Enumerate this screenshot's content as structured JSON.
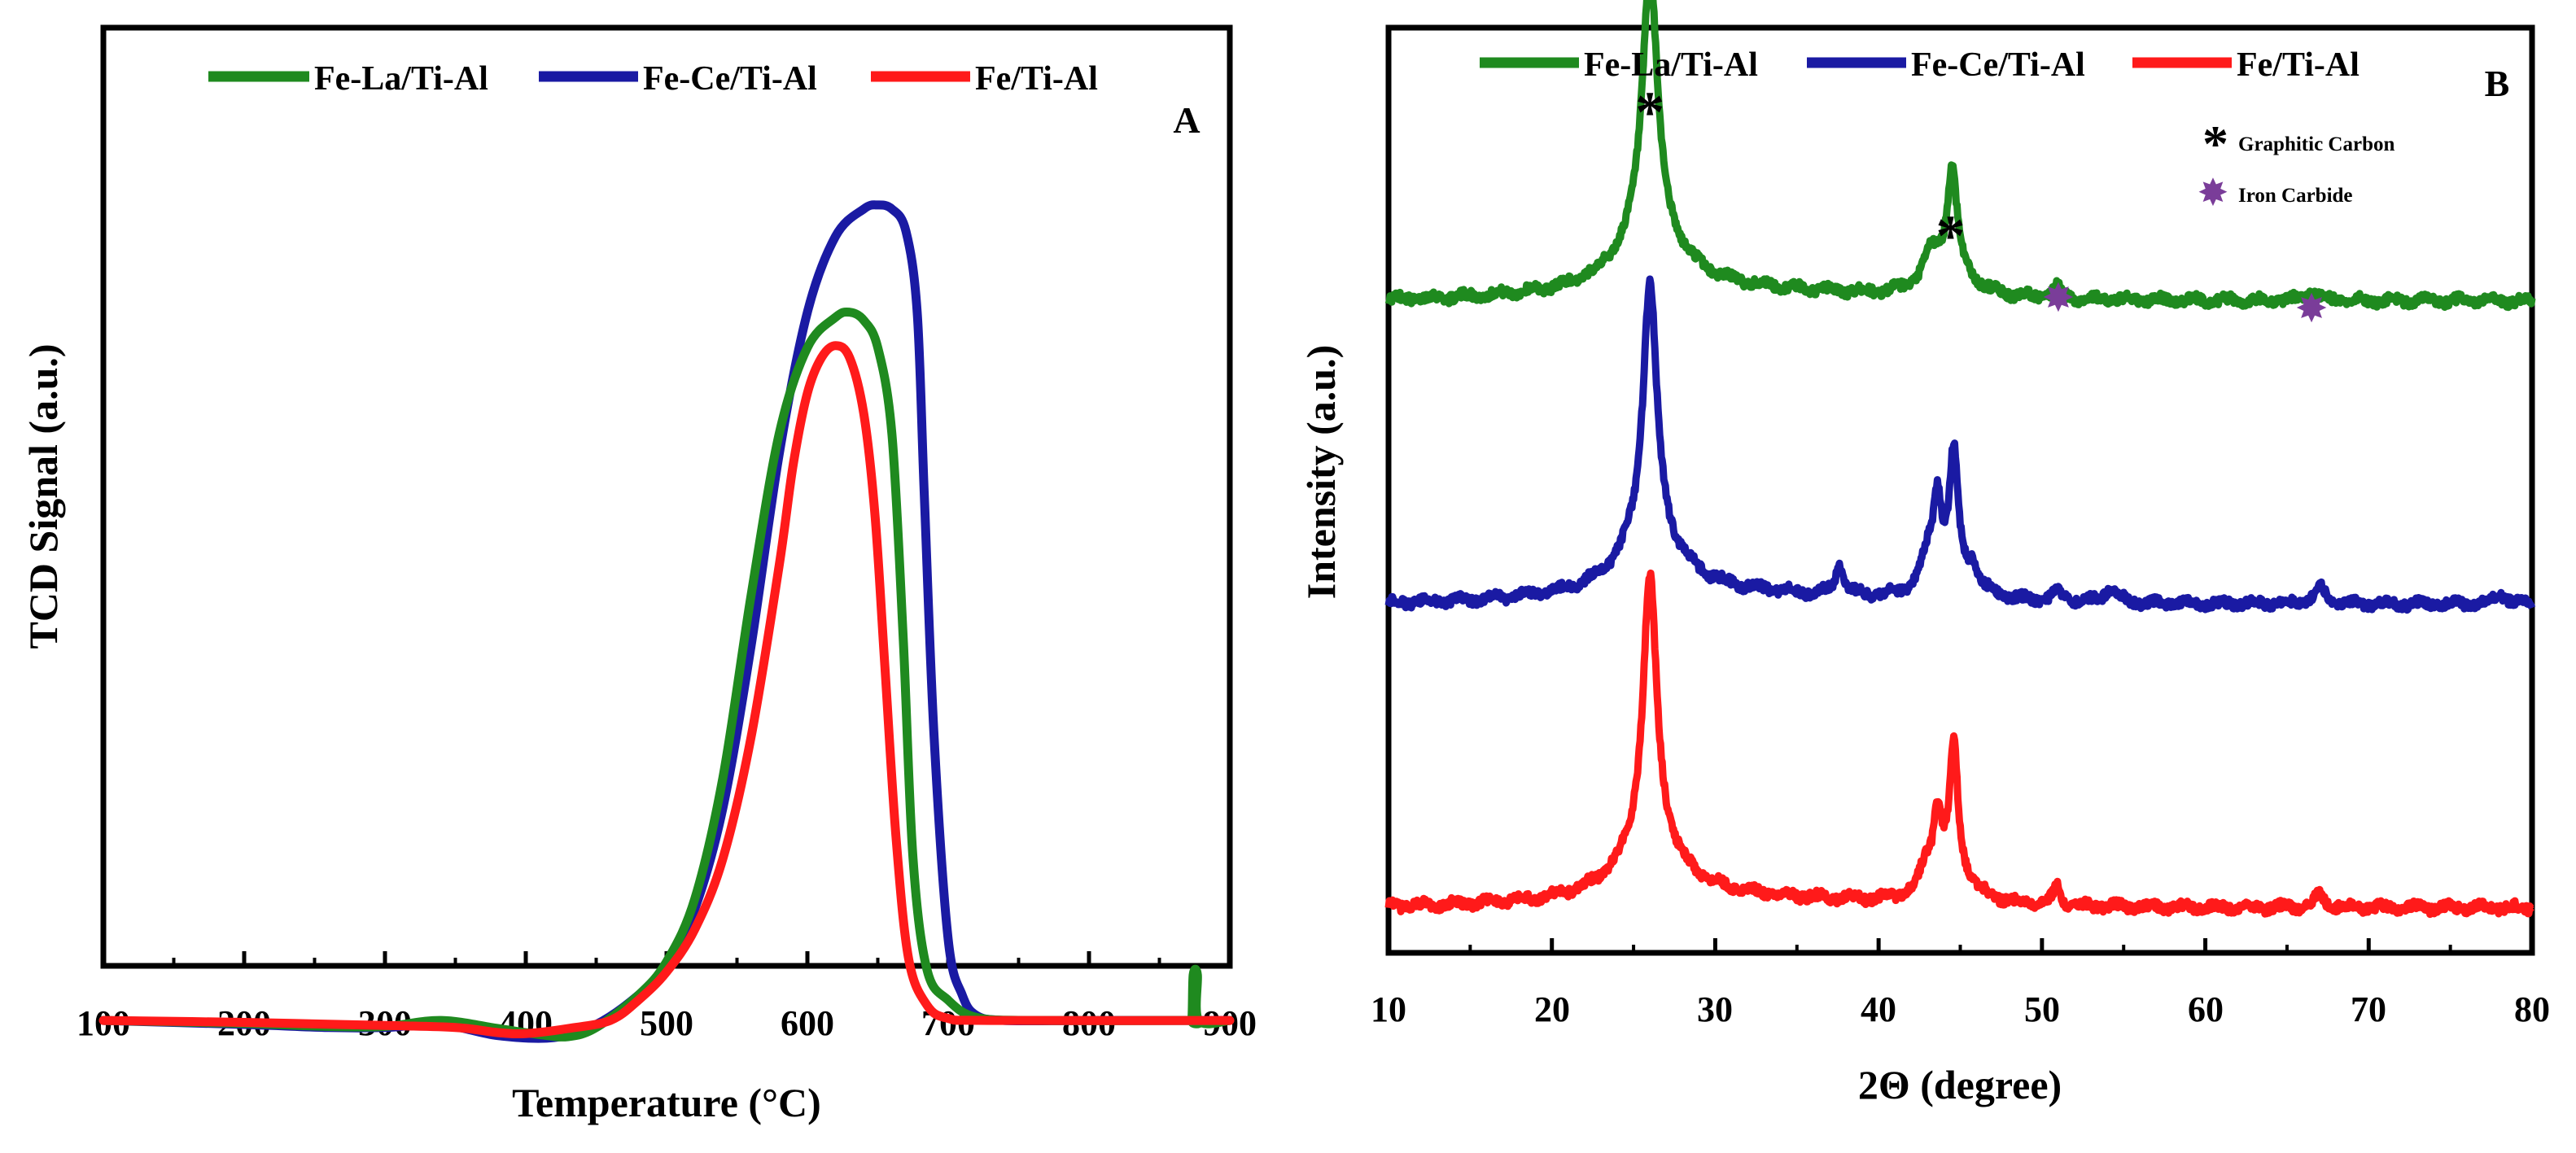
{
  "colors": {
    "green": "#1f8a1f",
    "blue": "#1a1aa3",
    "red": "#ff1a1a",
    "purple": "#7a3d99",
    "black": "#000000"
  },
  "chart_data": [
    {
      "type": "line",
      "panel": "A",
      "xlabel": "Temperature (°C)",
      "ylabel": "TCD Signal (a.u.)",
      "xlim": [
        100,
        900
      ],
      "xticks": [
        100,
        200,
        300,
        400,
        500,
        600,
        700,
        800,
        900
      ],
      "tick_labels": [
        "100",
        "200",
        "300",
        "400",
        "500",
        "600",
        "700",
        "800",
        "900"
      ],
      "ylim": [
        0,
        100
      ],
      "legend": [
        "Fe-La/Ti-Al",
        "Fe-Ce/Ti-Al",
        "Fe/Ti-Al"
      ],
      "legend_position": "top",
      "series": [
        {
          "name": "Fe-Ce/Ti-Al",
          "color": "#1a1aa3",
          "points": [
            [
              100,
              10
            ],
            [
              200,
              9.6
            ],
            [
              260,
              9.3
            ],
            [
              300,
              9.3
            ],
            [
              340,
              9.6
            ],
            [
              380,
              8.5
            ],
            [
              420,
              8.3
            ],
            [
              450,
              9.6
            ],
            [
              480,
              12.5
            ],
            [
              500,
              15.5
            ],
            [
              520,
              21
            ],
            [
              540,
              31
            ],
            [
              560,
              47
            ],
            [
              580,
              66
            ],
            [
              600,
              80
            ],
            [
              620,
              87.5
            ],
            [
              640,
              90.2
            ],
            [
              650,
              90.6
            ],
            [
              660,
              90.2
            ],
            [
              670,
              88
            ],
            [
              678,
              80
            ],
            [
              683,
              62
            ],
            [
              690,
              38
            ],
            [
              700,
              18
            ],
            [
              710,
              12.5
            ],
            [
              720,
              10.5
            ],
            [
              740,
              10
            ],
            [
              800,
              10
            ],
            [
              900,
              10
            ]
          ]
        },
        {
          "name": "Fe-La/Ti-Al",
          "color": "#1f8a1f",
          "points": [
            [
              100,
              10
            ],
            [
              200,
              9.7
            ],
            [
              260,
              9.4
            ],
            [
              300,
              9.4
            ],
            [
              340,
              10
            ],
            [
              380,
              9.2
            ],
            [
              410,
              8.6
            ],
            [
              430,
              8.4
            ],
            [
              450,
              9.3
            ],
            [
              480,
              12.5
            ],
            [
              500,
              15.8
            ],
            [
              520,
              22
            ],
            [
              540,
              34
            ],
            [
              560,
              52
            ],
            [
              580,
              68
            ],
            [
              600,
              76.5
            ],
            [
              620,
              79.5
            ],
            [
              630,
              80
            ],
            [
              640,
              79.2
            ],
            [
              650,
              76.5
            ],
            [
              660,
              68
            ],
            [
              668,
              48
            ],
            [
              675,
              26
            ],
            [
              685,
              15
            ],
            [
              700,
              12
            ],
            [
              720,
              10.3
            ],
            [
              760,
              10
            ],
            [
              870,
              10
            ],
            [
              873,
              10
            ],
            [
              874,
              14.5
            ],
            [
              877,
              14.5
            ],
            [
              878,
              10
            ],
            [
              900,
              10
            ]
          ]
        },
        {
          "name": "Fe/Ti-Al",
          "color": "#ff1a1a",
          "points": [
            [
              100,
              10
            ],
            [
              200,
              9.8
            ],
            [
              300,
              9.5
            ],
            [
              350,
              9.3
            ],
            [
              380,
              8.8
            ],
            [
              400,
              8.7
            ],
            [
              430,
              9.2
            ],
            [
              460,
              10
            ],
            [
              480,
              12
            ],
            [
              500,
              14.8
            ],
            [
              520,
              19
            ],
            [
              540,
              26
            ],
            [
              560,
              38
            ],
            [
              580,
              55
            ],
            [
              590,
              65
            ],
            [
              600,
              72
            ],
            [
              610,
              75.5
            ],
            [
              620,
              76.7
            ],
            [
              630,
              75.5
            ],
            [
              640,
              70
            ],
            [
              648,
              60
            ],
            [
              655,
              45
            ],
            [
              663,
              28
            ],
            [
              672,
              16
            ],
            [
              685,
              11.5
            ],
            [
              700,
              10.2
            ],
            [
              730,
              10
            ],
            [
              900,
              10
            ]
          ]
        }
      ]
    },
    {
      "type": "line",
      "panel": "B",
      "xlabel": "2Θ (degree)",
      "ylabel": "Intensity (a.u.)",
      "xlim": [
        10,
        80
      ],
      "xticks": [
        10,
        20,
        30,
        40,
        50,
        60,
        70,
        80
      ],
      "tick_labels": [
        "10",
        "20",
        "30",
        "40",
        "50",
        "60",
        "70",
        "80"
      ],
      "ylim": [
        0,
        100
      ],
      "legend": [
        "Fe-La/Ti-Al",
        "Fe-Ce/Ti-Al",
        "Fe/Ti-Al"
      ],
      "legend_position": "top",
      "series": [
        {
          "name": "Fe-La/Ti-Al",
          "color": "#1f8a1f",
          "baseline": 72.5,
          "peaks": [
            [
              26.0,
              27,
              0.55
            ],
            [
              26.0,
              6,
              2.4
            ],
            [
              43.2,
              3,
              0.6
            ],
            [
              44.5,
              10,
              0.35
            ],
            [
              44.5,
              3,
              1.4
            ],
            [
              50.9,
              1.2,
              0.3
            ],
            [
              66.5,
              0.8,
              0.5
            ]
          ]
        },
        {
          "name": "Fe-Ce/Ti-Al",
          "color": "#1a1aa3",
          "baseline": 41.5,
          "peaks": [
            [
              26.0,
              26,
              0.5
            ],
            [
              26.0,
              6,
              2.3
            ],
            [
              37.6,
              3,
              0.3
            ],
            [
              43.0,
              3,
              0.5
            ],
            [
              43.6,
              8,
              0.3
            ],
            [
              44.6,
              12,
              0.3
            ],
            [
              44.6,
              3,
              1.4
            ],
            [
              45.8,
              2,
              0.3
            ],
            [
              51.0,
              1,
              0.4
            ],
            [
              54.2,
              1.5,
              0.5
            ],
            [
              67.0,
              1.8,
              0.4
            ],
            [
              78.0,
              1.2,
              0.4
            ]
          ]
        },
        {
          "name": "Fe/Ti-Al",
          "color": "#ff1a1a",
          "baseline": 10.5,
          "peaks": [
            [
              26.0,
              27,
              0.5
            ],
            [
              26.0,
              6,
              2.2
            ],
            [
              42.9,
              2.5,
              0.5
            ],
            [
              43.6,
              7,
              0.3
            ],
            [
              44.6,
              13,
              0.3
            ],
            [
              44.6,
              3,
              1.4
            ],
            [
              50.9,
              2,
              0.25
            ],
            [
              67.0,
              1.2,
              0.4
            ]
          ]
        }
      ],
      "annotations": [
        {
          "label": "Graphitic Carbon",
          "symbol": "*",
          "marks_x": [
            26.0,
            44.4
          ]
        },
        {
          "label": "Iron Carbide",
          "symbol": "✸",
          "marks_x": [
            51.0,
            66.5
          ]
        }
      ]
    }
  ]
}
